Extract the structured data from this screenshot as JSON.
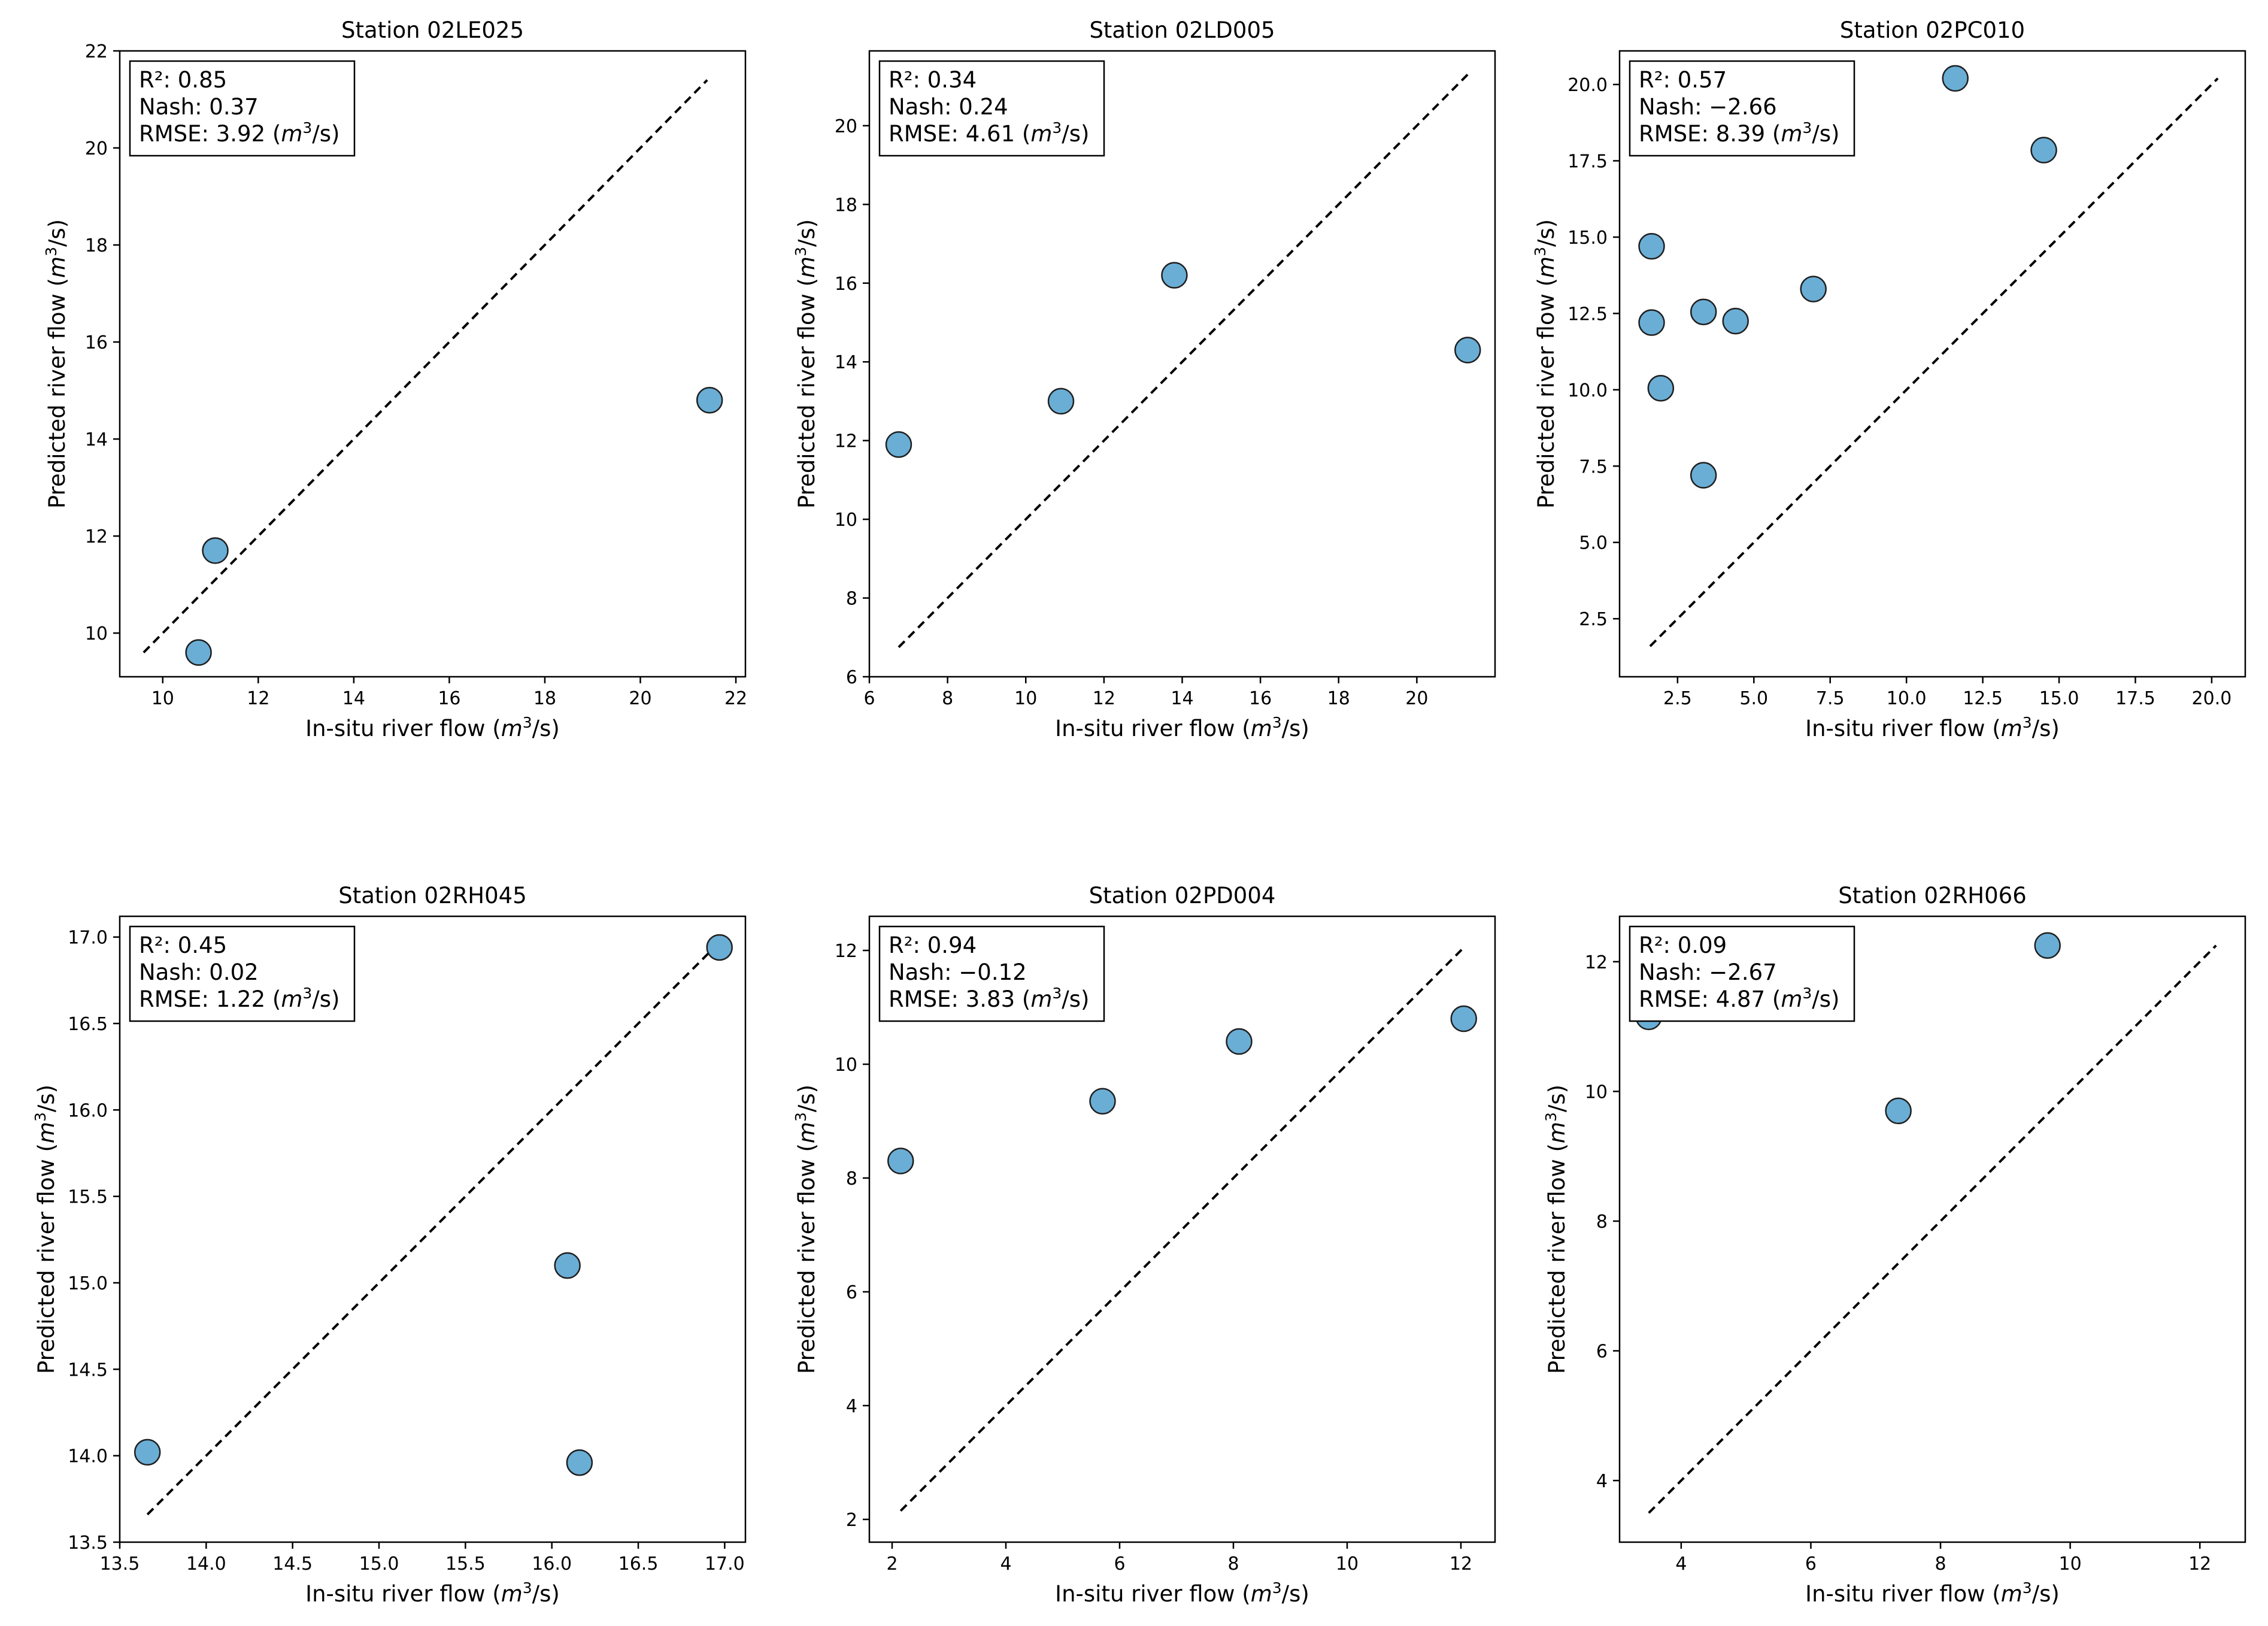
{
  "chart_data": [
    {
      "type": "scatter",
      "title": "Station 02LE025",
      "xlabel": "In-situ river flow",
      "ylabel": "Predicted river flow",
      "unit": {
        "base": "m",
        "exp": "3",
        "rest": "/s"
      },
      "xlim": [
        9.1,
        22.2
      ],
      "ylim": [
        9.1,
        22.0
      ],
      "xticks": [
        10,
        12,
        14,
        16,
        18,
        20,
        22
      ],
      "yticks": [
        10,
        12,
        14,
        16,
        18,
        20,
        22
      ],
      "x": [
        10.75,
        11.1,
        21.45
      ],
      "y": [
        9.6,
        11.7,
        14.8
      ],
      "identity_line": [
        9.6,
        21.4
      ],
      "stats": {
        "r2": "R²: 0.85",
        "nash": "Nash: 0.37",
        "rmse": "RMSE: 3.92"
      }
    },
    {
      "type": "scatter",
      "title": "Station 02LD005",
      "xlabel": "In-situ river flow",
      "ylabel": "Predicted river flow",
      "unit": {
        "base": "m",
        "exp": "3",
        "rest": "/s"
      },
      "xlim": [
        6.0,
        22.0
      ],
      "ylim": [
        6.0,
        21.9
      ],
      "xticks": [
        6,
        8,
        10,
        12,
        14,
        16,
        18,
        20
      ],
      "yticks": [
        6,
        8,
        10,
        12,
        14,
        16,
        18,
        20
      ],
      "x": [
        6.75,
        10.9,
        13.8,
        21.3
      ],
      "y": [
        11.9,
        13.0,
        16.2,
        14.3
      ],
      "identity_line": [
        6.75,
        21.3
      ],
      "stats": {
        "r2": "R²: 0.34",
        "nash": "Nash: 0.24",
        "rmse": "RMSE: 4.61"
      }
    },
    {
      "type": "scatter",
      "title": "Station 02PC010",
      "xlabel": "In-situ river flow",
      "ylabel": "Predicted river flow",
      "unit": {
        "base": "m",
        "exp": "3",
        "rest": "/s"
      },
      "xlim": [
        0.6,
        21.1
      ],
      "ylim": [
        0.6,
        21.1
      ],
      "xticks": [
        2.5,
        5.0,
        7.5,
        10.0,
        12.5,
        15.0,
        17.5,
        20.0
      ],
      "ytick_labels": [
        "2.5",
        "5.0",
        "7.5",
        "10.0",
        "12.5",
        "15.0",
        "17.5",
        "20.0"
      ],
      "xtick_labels": [
        "2.5",
        "5.0",
        "7.5",
        "10.0",
        "12.5",
        "15.0",
        "17.5",
        "20.0"
      ],
      "yticks": [
        2.5,
        5.0,
        7.5,
        10.0,
        12.5,
        15.0,
        17.5,
        20.0
      ],
      "x": [
        1.65,
        1.65,
        1.95,
        3.35,
        3.35,
        4.4,
        6.95,
        11.6,
        14.5
      ],
      "y": [
        14.7,
        12.2,
        10.05,
        12.55,
        7.2,
        12.25,
        13.3,
        20.2,
        17.85
      ],
      "identity_line": [
        1.6,
        20.2
      ],
      "stats": {
        "r2": "R²: 0.57",
        "nash": "Nash: −2.66",
        "rmse": "RMSE: 8.39"
      }
    },
    {
      "type": "scatter",
      "title": "Station 02RH045",
      "xlabel": "In-situ river flow",
      "ylabel": "Predicted river flow",
      "unit": {
        "base": "m",
        "exp": "3",
        "rest": "/s"
      },
      "xlim": [
        13.5,
        17.12
      ],
      "ylim": [
        13.5,
        17.12
      ],
      "xticks": [
        13.5,
        14.0,
        14.5,
        15.0,
        15.5,
        16.0,
        16.5,
        17.0
      ],
      "xtick_labels": [
        "13.5",
        "14.0",
        "14.5",
        "15.0",
        "15.5",
        "16.0",
        "16.5",
        "17.0"
      ],
      "yticks": [
        13.5,
        14.0,
        14.5,
        15.0,
        15.5,
        16.0,
        16.5,
        17.0
      ],
      "ytick_labels": [
        "13.5",
        "14.0",
        "14.5",
        "15.0",
        "15.5",
        "16.0",
        "16.5",
        "17.0"
      ],
      "x": [
        13.66,
        16.09,
        16.16,
        16.97
      ],
      "y": [
        14.02,
        15.1,
        13.96,
        16.94
      ],
      "identity_line": [
        13.66,
        16.97
      ],
      "stats": {
        "r2": "R²: 0.45",
        "nash": "Nash: 0.02",
        "rmse": "RMSE: 1.22"
      }
    },
    {
      "type": "scatter",
      "title": "Station 02PD004",
      "xlabel": "In-situ river flow",
      "ylabel": "Predicted river flow",
      "unit": {
        "base": "m",
        "exp": "3",
        "rest": "/s"
      },
      "xlim": [
        1.6,
        12.6
      ],
      "ylim": [
        1.6,
        12.6
      ],
      "xticks": [
        2,
        4,
        6,
        8,
        10,
        12
      ],
      "yticks": [
        2,
        4,
        6,
        8,
        10,
        12
      ],
      "x": [
        2.15,
        5.7,
        8.1,
        12.05
      ],
      "y": [
        8.3,
        9.35,
        10.4,
        10.8
      ],
      "identity_line": [
        2.15,
        12.05
      ],
      "stats": {
        "r2": "R²: 0.94",
        "nash": "Nash: −0.12",
        "rmse": "RMSE: 3.83"
      }
    },
    {
      "type": "scatter",
      "title": "Station 02RH066",
      "xlabel": "In-situ river flow",
      "ylabel": "Predicted river flow",
      "unit": {
        "base": "m",
        "exp": "3",
        "rest": "/s"
      },
      "xlim": [
        3.05,
        12.7
      ],
      "ylim": [
        3.05,
        12.7
      ],
      "xticks": [
        4,
        6,
        8,
        10,
        12
      ],
      "yticks": [
        4,
        6,
        8,
        10,
        12
      ],
      "x": [
        3.5,
        7.35,
        9.65
      ],
      "y": [
        11.15,
        9.7,
        12.25
      ],
      "identity_line": [
        3.5,
        12.25
      ],
      "stats": {
        "r2": "R²: 0.09",
        "nash": "Nash: −2.67",
        "rmse": "RMSE: 4.87"
      }
    }
  ],
  "colors": {
    "point_fill": "#6aaed6",
    "point_edge": "#1f1f1f",
    "identity_line": "#000000",
    "axes": "#000000"
  }
}
